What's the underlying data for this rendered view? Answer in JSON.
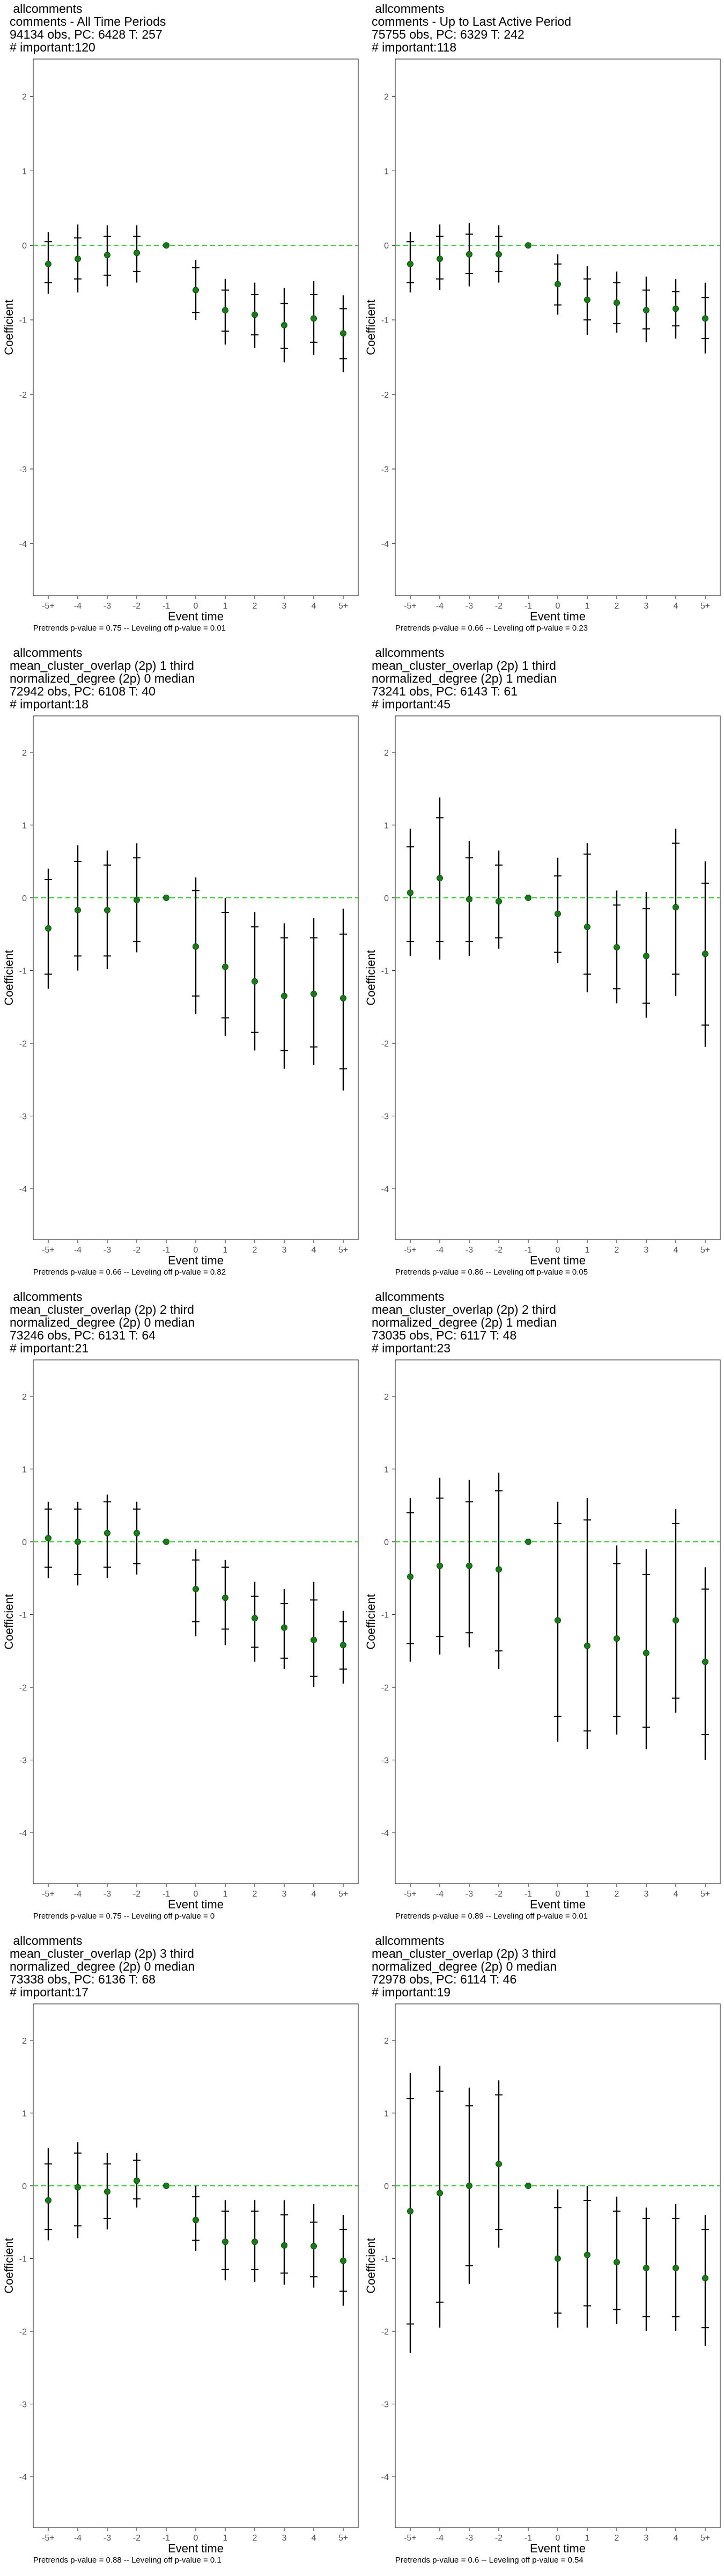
{
  "axis": {
    "xlabel": "Event time",
    "ylabel": "Coefficient",
    "yticks": [
      2,
      1,
      0,
      -1,
      -2,
      -3,
      -4
    ],
    "xticks": [
      "-5+",
      "-4",
      "-3",
      "-2",
      "-1",
      "0",
      "1",
      "2",
      "3",
      "4",
      "5+"
    ]
  },
  "colors": {
    "point": "#1a7a1a",
    "zero_line": "#33cc33",
    "whisker": "#000000"
  },
  "chart_data": [
    {
      "type": "scatter",
      "title_lines": [
        "allcomments",
        "comments - All Time Periods",
        "94134 obs, PC: 6428 T: 257",
        "# important:120"
      ],
      "footer": "Pretrends p-value = 0.75 -- Leveling off p-value = 0.01",
      "ylim": [
        -4.7,
        2.5
      ],
      "x": [
        "-5+",
        "-4",
        "-3",
        "-2",
        "-1",
        "0",
        "1",
        "2",
        "3",
        "4",
        "5+"
      ],
      "y": [
        -0.25,
        -0.18,
        -0.13,
        -0.1,
        0,
        -0.6,
        -0.87,
        -0.93,
        -1.07,
        -0.98,
        -1.18
      ],
      "ci90": [
        [
          -0.5,
          0.05
        ],
        [
          -0.45,
          0.1
        ],
        [
          -0.4,
          0.12
        ],
        [
          -0.35,
          0.12
        ],
        [
          0,
          0
        ],
        [
          -0.9,
          -0.3
        ],
        [
          -1.15,
          -0.6
        ],
        [
          -1.2,
          -0.66
        ],
        [
          -1.38,
          -0.78
        ],
        [
          -1.3,
          -0.66
        ],
        [
          -1.52,
          -0.85
        ]
      ],
      "ci95": [
        [
          -0.65,
          0.18
        ],
        [
          -0.63,
          0.28
        ],
        [
          -0.55,
          0.27
        ],
        [
          -0.5,
          0.27
        ],
        [
          0,
          0
        ],
        [
          -1.0,
          -0.2
        ],
        [
          -1.33,
          -0.45
        ],
        [
          -1.38,
          -0.5
        ],
        [
          -1.57,
          -0.57
        ],
        [
          -1.47,
          -0.48
        ],
        [
          -1.7,
          -0.67
        ]
      ]
    },
    {
      "type": "scatter",
      "title_lines": [
        "allcomments",
        "comments - Up to Last Active Period",
        "75755 obs, PC: 6329 T: 242",
        "# important:118"
      ],
      "footer": "Pretrends p-value = 0.66 -- Leveling off p-value = 0.23",
      "ylim": [
        -4.7,
        2.5
      ],
      "x": [
        "-5+",
        "-4",
        "-3",
        "-2",
        "-1",
        "0",
        "1",
        "2",
        "3",
        "4",
        "5+"
      ],
      "y": [
        -0.25,
        -0.18,
        -0.12,
        -0.12,
        0,
        -0.52,
        -0.73,
        -0.77,
        -0.87,
        -0.85,
        -0.98
      ],
      "ci90": [
        [
          -0.5,
          0.05
        ],
        [
          -0.45,
          0.12
        ],
        [
          -0.38,
          0.15
        ],
        [
          -0.35,
          0.12
        ],
        [
          0,
          0
        ],
        [
          -0.8,
          -0.25
        ],
        [
          -1.0,
          -0.45
        ],
        [
          -1.05,
          -0.5
        ],
        [
          -1.12,
          -0.6
        ],
        [
          -1.08,
          -0.62
        ],
        [
          -1.25,
          -0.7
        ]
      ],
      "ci95": [
        [
          -0.63,
          0.18
        ],
        [
          -0.6,
          0.28
        ],
        [
          -0.55,
          0.3
        ],
        [
          -0.5,
          0.27
        ],
        [
          0,
          0
        ],
        [
          -0.93,
          -0.12
        ],
        [
          -1.2,
          -0.28
        ],
        [
          -1.17,
          -0.35
        ],
        [
          -1.3,
          -0.42
        ],
        [
          -1.25,
          -0.45
        ],
        [
          -1.45,
          -0.5
        ]
      ]
    },
    {
      "type": "scatter",
      "title_lines": [
        "allcomments",
        "mean_cluster_overlap (2p) 1 third",
        "normalized_degree (2p) 0 median",
        "72942 obs, PC: 6108 T: 40",
        "# important:18"
      ],
      "footer": "Pretrends p-value = 0.66 -- Leveling off p-value = 0.82",
      "ylim": [
        -4.7,
        2.5
      ],
      "x": [
        "-5+",
        "-4",
        "-3",
        "-2",
        "-1",
        "0",
        "1",
        "2",
        "3",
        "4",
        "5+"
      ],
      "y": [
        -0.42,
        -0.17,
        -0.17,
        -0.03,
        0,
        -0.67,
        -0.95,
        -1.15,
        -1.35,
        -1.32,
        -1.38
      ],
      "ci90": [
        [
          -1.05,
          0.25
        ],
        [
          -0.8,
          0.5
        ],
        [
          -0.8,
          0.45
        ],
        [
          -0.6,
          0.55
        ],
        [
          0,
          0
        ],
        [
          -1.35,
          0.1
        ],
        [
          -1.65,
          -0.2
        ],
        [
          -1.85,
          -0.4
        ],
        [
          -2.1,
          -0.55
        ],
        [
          -2.05,
          -0.55
        ],
        [
          -2.35,
          -0.5
        ]
      ],
      "ci95": [
        [
          -1.25,
          0.4
        ],
        [
          -1.0,
          0.72
        ],
        [
          -0.98,
          0.65
        ],
        [
          -0.75,
          0.75
        ],
        [
          0,
          0
        ],
        [
          -1.6,
          0.28
        ],
        [
          -1.9,
          0.0
        ],
        [
          -2.1,
          -0.2
        ],
        [
          -2.35,
          -0.35
        ],
        [
          -2.3,
          -0.28
        ],
        [
          -2.65,
          -0.15
        ]
      ]
    },
    {
      "type": "scatter",
      "title_lines": [
        "allcomments",
        "mean_cluster_overlap (2p) 1 third",
        "normalized_degree (2p) 1 median",
        "73241 obs, PC: 6143 T: 61",
        "# important:45"
      ],
      "footer": "Pretrends p-value = 0.86 -- Leveling off p-value = 0.05",
      "ylim": [
        -4.7,
        2.5
      ],
      "x": [
        "-5+",
        "-4",
        "-3",
        "-2",
        "-1",
        "0",
        "1",
        "2",
        "3",
        "4",
        "5+"
      ],
      "y": [
        0.07,
        0.27,
        -0.02,
        -0.05,
        0,
        -0.22,
        -0.4,
        -0.68,
        -0.8,
        -0.13,
        -0.77
      ],
      "ci90": [
        [
          -0.6,
          0.7
        ],
        [
          -0.6,
          1.1
        ],
        [
          -0.6,
          0.55
        ],
        [
          -0.55,
          0.45
        ],
        [
          0,
          0
        ],
        [
          -0.75,
          0.3
        ],
        [
          -1.05,
          0.6
        ],
        [
          -1.25,
          -0.1
        ],
        [
          -1.45,
          -0.15
        ],
        [
          -1.05,
          0.75
        ],
        [
          -1.75,
          0.2
        ]
      ],
      "ci95": [
        [
          -0.8,
          0.95
        ],
        [
          -0.85,
          1.38
        ],
        [
          -0.8,
          0.78
        ],
        [
          -0.7,
          0.65
        ],
        [
          0,
          0
        ],
        [
          -0.9,
          0.55
        ],
        [
          -1.3,
          0.75
        ],
        [
          -1.45,
          0.1
        ],
        [
          -1.65,
          0.08
        ],
        [
          -1.35,
          0.95
        ],
        [
          -2.05,
          0.5
        ]
      ]
    },
    {
      "type": "scatter",
      "title_lines": [
        "allcomments",
        "mean_cluster_overlap (2p) 2 third",
        "normalized_degree (2p) 0 median",
        "73246 obs, PC: 6131 T: 64",
        "# important:21"
      ],
      "footer": "Pretrends p-value = 0.75 -- Leveling off p-value = 0",
      "ylim": [
        -4.7,
        2.5
      ],
      "x": [
        "-5+",
        "-4",
        "-3",
        "-2",
        "-1",
        "0",
        "1",
        "2",
        "3",
        "4",
        "5+"
      ],
      "y": [
        0.05,
        0.0,
        0.12,
        0.12,
        0,
        -0.65,
        -0.77,
        -1.05,
        -1.18,
        -1.35,
        -1.42
      ],
      "ci90": [
        [
          -0.35,
          0.45
        ],
        [
          -0.45,
          0.45
        ],
        [
          -0.35,
          0.55
        ],
        [
          -0.3,
          0.45
        ],
        [
          0,
          0
        ],
        [
          -1.1,
          -0.25
        ],
        [
          -1.2,
          -0.35
        ],
        [
          -1.45,
          -0.75
        ],
        [
          -1.6,
          -0.85
        ],
        [
          -1.85,
          -0.8
        ],
        [
          -1.75,
          -1.1
        ]
      ],
      "ci95": [
        [
          -0.5,
          0.55
        ],
        [
          -0.6,
          0.55
        ],
        [
          -0.5,
          0.65
        ],
        [
          -0.45,
          0.55
        ],
        [
          0,
          0
        ],
        [
          -1.3,
          -0.1
        ],
        [
          -1.42,
          -0.25
        ],
        [
          -1.65,
          -0.55
        ],
        [
          -1.75,
          -0.65
        ],
        [
          -2.0,
          -0.55
        ],
        [
          -1.95,
          -0.95
        ]
      ]
    },
    {
      "type": "scatter",
      "title_lines": [
        "allcomments",
        "mean_cluster_overlap (2p) 2 third",
        "normalized_degree (2p) 1 median",
        "73035 obs, PC: 6117 T: 48",
        "# important:23"
      ],
      "footer": "Pretrends p-value = 0.89 -- Leveling off p-value = 0.01",
      "ylim": [
        -4.7,
        2.5
      ],
      "x": [
        "-5+",
        "-4",
        "-3",
        "-2",
        "-1",
        "0",
        "1",
        "2",
        "3",
        "4",
        "5+"
      ],
      "y": [
        -0.48,
        -0.33,
        -0.33,
        -0.38,
        0,
        -1.08,
        -1.43,
        -1.33,
        -1.53,
        -1.08,
        -1.65
      ],
      "ci90": [
        [
          -1.4,
          0.4
        ],
        [
          -1.3,
          0.6
        ],
        [
          -1.25,
          0.55
        ],
        [
          -1.5,
          0.7
        ],
        [
          0,
          0
        ],
        [
          -2.4,
          0.25
        ],
        [
          -2.6,
          0.3
        ],
        [
          -2.4,
          -0.3
        ],
        [
          -2.55,
          -0.45
        ],
        [
          -2.15,
          0.25
        ],
        [
          -2.65,
          -0.65
        ]
      ],
      "ci95": [
        [
          -1.65,
          0.6
        ],
        [
          -1.55,
          0.88
        ],
        [
          -1.45,
          0.85
        ],
        [
          -1.75,
          0.95
        ],
        [
          0,
          0
        ],
        [
          -2.75,
          0.55
        ],
        [
          -2.85,
          0.6
        ],
        [
          -2.65,
          -0.05
        ],
        [
          -2.85,
          -0.1
        ],
        [
          -2.35,
          0.45
        ],
        [
          -3.0,
          -0.35
        ]
      ]
    },
    {
      "type": "scatter",
      "title_lines": [
        "allcomments",
        "mean_cluster_overlap (2p) 3 third",
        "normalized_degree (2p) 0 median",
        "73338 obs, PC: 6136 T: 68",
        "# important:17"
      ],
      "footer": "Pretrends p-value = 0.88 -- Leveling off p-value = 0.1",
      "ylim": [
        -4.7,
        2.5
      ],
      "x": [
        "-5+",
        "-4",
        "-3",
        "-2",
        "-1",
        "0",
        "1",
        "2",
        "3",
        "4",
        "5+"
      ],
      "y": [
        -0.2,
        -0.02,
        -0.08,
        0.07,
        0,
        -0.47,
        -0.77,
        -0.77,
        -0.82,
        -0.83,
        -1.03
      ],
      "ci90": [
        [
          -0.6,
          0.3
        ],
        [
          -0.55,
          0.45
        ],
        [
          -0.45,
          0.3
        ],
        [
          -0.18,
          0.35
        ],
        [
          0,
          0
        ],
        [
          -0.75,
          -0.15
        ],
        [
          -1.15,
          -0.35
        ],
        [
          -1.15,
          -0.35
        ],
        [
          -1.2,
          -0.4
        ],
        [
          -1.25,
          -0.5
        ],
        [
          -1.45,
          -0.6
        ]
      ],
      "ci95": [
        [
          -0.75,
          0.52
        ],
        [
          -0.72,
          0.6
        ],
        [
          -0.6,
          0.45
        ],
        [
          -0.3,
          0.45
        ],
        [
          0,
          0
        ],
        [
          -0.9,
          0.0
        ],
        [
          -1.3,
          -0.2
        ],
        [
          -1.32,
          -0.2
        ],
        [
          -1.36,
          -0.2
        ],
        [
          -1.4,
          -0.25
        ],
        [
          -1.65,
          -0.4
        ]
      ]
    },
    {
      "type": "scatter",
      "title_lines": [
        "allcomments",
        "mean_cluster_overlap (2p) 3 third",
        "normalized_degree (2p) 0 median",
        "72978 obs, PC: 6114 T: 46",
        "# important:19"
      ],
      "footer": "Pretrends p-value = 0.6 -- Leveling off p-value = 0.54",
      "ylim": [
        -4.7,
        2.5
      ],
      "x": [
        "-5+",
        "-4",
        "-3",
        "-2",
        "-1",
        "0",
        "1",
        "2",
        "3",
        "4",
        "5+"
      ],
      "y": [
        -0.35,
        -0.1,
        0.0,
        0.3,
        0,
        -1.0,
        -0.95,
        -1.05,
        -1.13,
        -1.13,
        -1.27
      ],
      "ci90": [
        [
          -1.9,
          1.2
        ],
        [
          -1.6,
          1.3
        ],
        [
          -1.1,
          1.1
        ],
        [
          -0.6,
          1.25
        ],
        [
          0,
          0
        ],
        [
          -1.75,
          -0.3
        ],
        [
          -1.65,
          -0.2
        ],
        [
          -1.7,
          -0.35
        ],
        [
          -1.8,
          -0.45
        ],
        [
          -1.8,
          -0.45
        ],
        [
          -1.95,
          -0.6
        ]
      ],
      "ci95": [
        [
          -2.3,
          1.55
        ],
        [
          -1.95,
          1.65
        ],
        [
          -1.35,
          1.35
        ],
        [
          -0.85,
          1.45
        ],
        [
          0,
          0
        ],
        [
          -1.95,
          -0.05
        ],
        [
          -1.95,
          0.0
        ],
        [
          -1.9,
          -0.15
        ],
        [
          -2.0,
          -0.3
        ],
        [
          -2.0,
          -0.25
        ],
        [
          -2.2,
          -0.4
        ]
      ]
    }
  ]
}
